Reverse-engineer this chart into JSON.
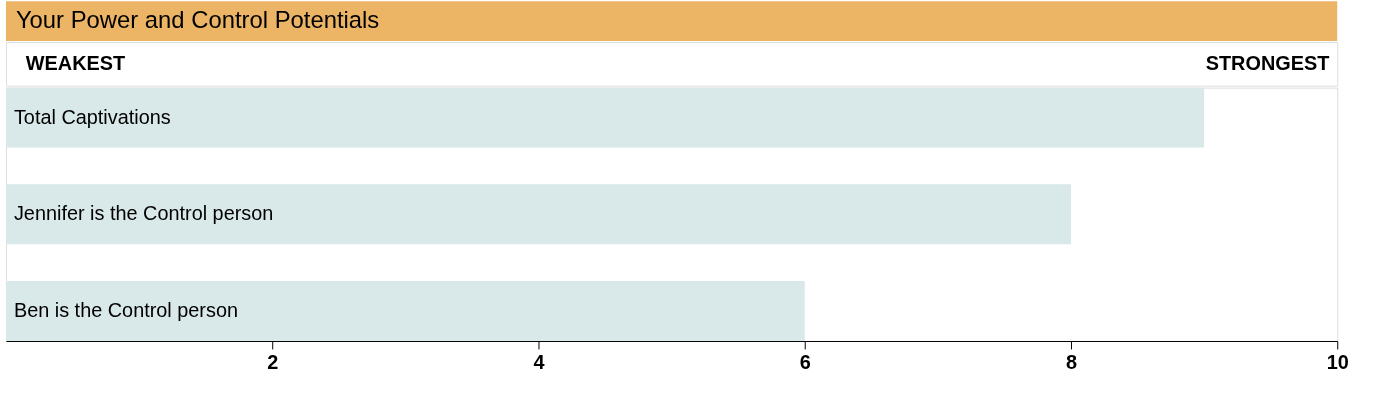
{
  "chart_data": {
    "type": "bar",
    "orientation": "horizontal",
    "title": "Your Power and Control Potentials",
    "annotations": [
      "WEAKEST",
      "STRONGEST"
    ],
    "categories": [
      "Total Captivations",
      "Jennifer is the Control person",
      "Ben is the Control person"
    ],
    "values": [
      9,
      8,
      6
    ],
    "color": "#d9e8e8",
    "xlim": [
      0,
      10
    ],
    "xticks": [
      2,
      4,
      6,
      8,
      10
    ]
  }
}
